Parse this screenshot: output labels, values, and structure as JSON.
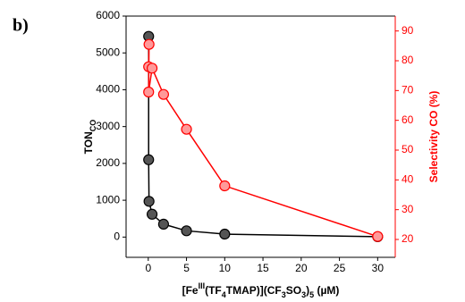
{
  "chart_data": {
    "type": "line",
    "panel_label": "b)",
    "ylabel_parts": [
      {
        "text": "TON"
      },
      {
        "text": "CO",
        "pos": "sub"
      }
    ],
    "y2label": "Selectivity CO (%)",
    "xlabel_parts": [
      {
        "text": "[Fe"
      },
      {
        "text": "III",
        "pos": "sup"
      },
      {
        "text": "(TF"
      },
      {
        "text": "4",
        "pos": "sub"
      },
      {
        "text": "TMAP)](CF"
      },
      {
        "text": "3",
        "pos": "sub"
      },
      {
        "text": "SO"
      },
      {
        "text": "3",
        "pos": "sub"
      },
      {
        "text": ")"
      },
      {
        "text": "5",
        "pos": "sub"
      },
      {
        "text": " (µM)"
      }
    ],
    "xlim": [
      -2.9,
      32.3
    ],
    "xticks": [
      0,
      5,
      10,
      15,
      20,
      25,
      30
    ],
    "ylim": [
      -550,
      6000
    ],
    "yticks": [
      0,
      1000,
      2000,
      3000,
      4000,
      5000,
      6000
    ],
    "y2lim": [
      14,
      95
    ],
    "y2ticks": [
      20,
      30,
      40,
      50,
      60,
      70,
      80,
      90
    ],
    "y2color": "#ff0000",
    "series": [
      {
        "color": "#000000",
        "fill": "#555555",
        "x": [
          0.05,
          0.05,
          0.1,
          0.5,
          2,
          5,
          10,
          30
        ],
        "values": [
          5450,
          2100,
          970,
          620,
          350,
          170,
          80,
          10
        ]
      },
      {
        "color": "#ff0000",
        "fill": "#ff9999",
        "axis": "y2",
        "x": [
          0.05,
          0.1,
          0.05,
          0.5,
          2,
          5,
          10,
          30
        ],
        "values": [
          78,
          85.5,
          69.5,
          77.5,
          68.7,
          57,
          38,
          21
        ]
      }
    ]
  }
}
